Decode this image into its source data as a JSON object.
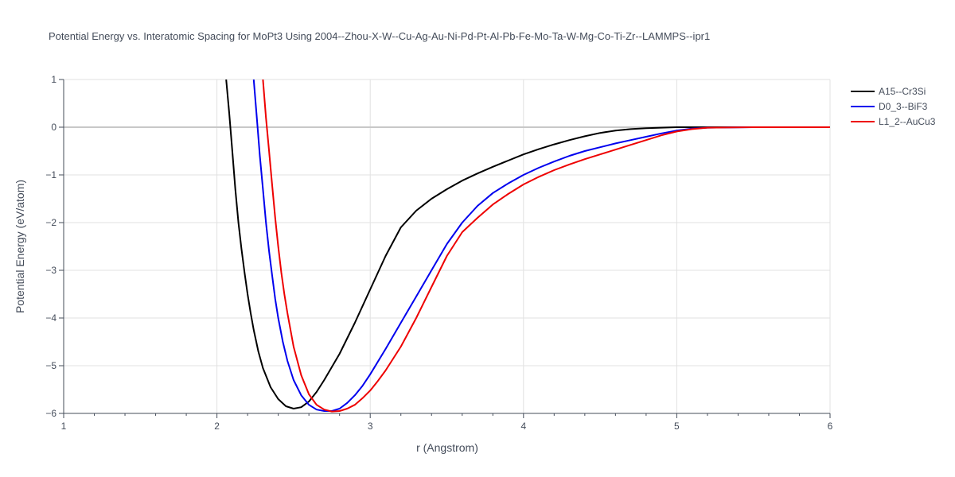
{
  "chart_data": {
    "type": "line",
    "title": "Potential Energy vs. Interatomic Spacing for MoPt3 Using 2004--Zhou-X-W--Cu-Ag-Au-Ni-Pd-Pt-Al-Pb-Fe-Mo-Ta-W-Mg-Co-Ti-Zr--LAMMPS--ipr1",
    "xlabel": "r (Angstrom)",
    "ylabel": "Potential Energy (eV/atom)",
    "xlim": [
      1,
      6
    ],
    "ylim": [
      -6,
      1
    ],
    "xticks": [
      1,
      2,
      3,
      4,
      5,
      6
    ],
    "yticks": [
      1,
      0,
      -1,
      -2,
      -3,
      -4,
      -5,
      -6
    ],
    "xtick_labels": [
      "1",
      "2",
      "3",
      "4",
      "5",
      "6"
    ],
    "ytick_labels": [
      "1",
      "0",
      "−1",
      "−2",
      "−3",
      "−4",
      "−5",
      "−6"
    ],
    "grid": true,
    "legend_position": "top-right",
    "series": [
      {
        "name": "A15--Cr3Si",
        "color": "#000000",
        "x": [
          2.06,
          2.08,
          2.1,
          2.12,
          2.14,
          2.16,
          2.18,
          2.2,
          2.22,
          2.24,
          2.27,
          2.3,
          2.35,
          2.4,
          2.45,
          2.5,
          2.55,
          2.6,
          2.65,
          2.7,
          2.8,
          2.9,
          3.0,
          3.1,
          3.2,
          3.3,
          3.4,
          3.5,
          3.6,
          3.7,
          3.8,
          3.9,
          4.0,
          4.1,
          4.2,
          4.3,
          4.4,
          4.5,
          4.6,
          4.7,
          4.8,
          4.9,
          5.0,
          5.2,
          5.5,
          6.0
        ],
        "y": [
          1.0,
          0.3,
          -0.5,
          -1.3,
          -2.0,
          -2.55,
          -3.05,
          -3.5,
          -3.9,
          -4.25,
          -4.7,
          -5.05,
          -5.45,
          -5.7,
          -5.85,
          -5.9,
          -5.87,
          -5.75,
          -5.55,
          -5.3,
          -4.75,
          -4.1,
          -3.4,
          -2.7,
          -2.1,
          -1.75,
          -1.5,
          -1.3,
          -1.12,
          -0.97,
          -0.83,
          -0.7,
          -0.57,
          -0.46,
          -0.36,
          -0.27,
          -0.19,
          -0.12,
          -0.07,
          -0.04,
          -0.02,
          -0.01,
          0.0,
          0.0,
          0.0,
          0.0
        ]
      },
      {
        "name": "D0_3--BiF3",
        "color": "#0000ee",
        "x": [
          2.24,
          2.26,
          2.28,
          2.3,
          2.32,
          2.34,
          2.36,
          2.38,
          2.4,
          2.43,
          2.46,
          2.5,
          2.55,
          2.6,
          2.65,
          2.7,
          2.75,
          2.8,
          2.85,
          2.9,
          2.95,
          3.0,
          3.1,
          3.2,
          3.3,
          3.4,
          3.5,
          3.6,
          3.7,
          3.8,
          3.9,
          4.0,
          4.1,
          4.2,
          4.3,
          4.4,
          4.5,
          4.6,
          4.7,
          4.8,
          4.9,
          5.0,
          5.1,
          5.2,
          5.5,
          6.0
        ],
        "y": [
          1.0,
          0.2,
          -0.6,
          -1.3,
          -2.0,
          -2.6,
          -3.1,
          -3.6,
          -4.0,
          -4.5,
          -4.9,
          -5.3,
          -5.62,
          -5.82,
          -5.92,
          -5.95,
          -5.95,
          -5.9,
          -5.78,
          -5.62,
          -5.42,
          -5.18,
          -4.65,
          -4.1,
          -3.55,
          -3.0,
          -2.45,
          -2.0,
          -1.65,
          -1.38,
          -1.18,
          -1.0,
          -0.85,
          -0.72,
          -0.6,
          -0.5,
          -0.42,
          -0.34,
          -0.27,
          -0.2,
          -0.13,
          -0.07,
          -0.03,
          -0.01,
          0.0,
          0.0
        ]
      },
      {
        "name": "L1_2--AuCu3",
        "color": "#ee0000",
        "x": [
          2.3,
          2.32,
          2.34,
          2.36,
          2.38,
          2.4,
          2.42,
          2.44,
          2.46,
          2.5,
          2.55,
          2.6,
          2.65,
          2.7,
          2.75,
          2.8,
          2.85,
          2.9,
          2.95,
          3.0,
          3.05,
          3.1,
          3.2,
          3.3,
          3.4,
          3.5,
          3.6,
          3.7,
          3.8,
          3.9,
          4.0,
          4.1,
          4.2,
          4.3,
          4.4,
          4.5,
          4.6,
          4.7,
          4.8,
          4.9,
          5.0,
          5.1,
          5.2,
          5.5,
          6.0
        ],
        "y": [
          1.0,
          0.2,
          -0.5,
          -1.2,
          -1.9,
          -2.5,
          -3.05,
          -3.5,
          -3.9,
          -4.6,
          -5.2,
          -5.6,
          -5.82,
          -5.92,
          -5.96,
          -5.95,
          -5.9,
          -5.82,
          -5.68,
          -5.52,
          -5.32,
          -5.1,
          -4.6,
          -4.0,
          -3.35,
          -2.7,
          -2.2,
          -1.9,
          -1.62,
          -1.4,
          -1.2,
          -1.04,
          -0.9,
          -0.78,
          -0.67,
          -0.57,
          -0.47,
          -0.37,
          -0.27,
          -0.17,
          -0.09,
          -0.04,
          -0.01,
          0.0,
          0.0
        ]
      }
    ]
  }
}
